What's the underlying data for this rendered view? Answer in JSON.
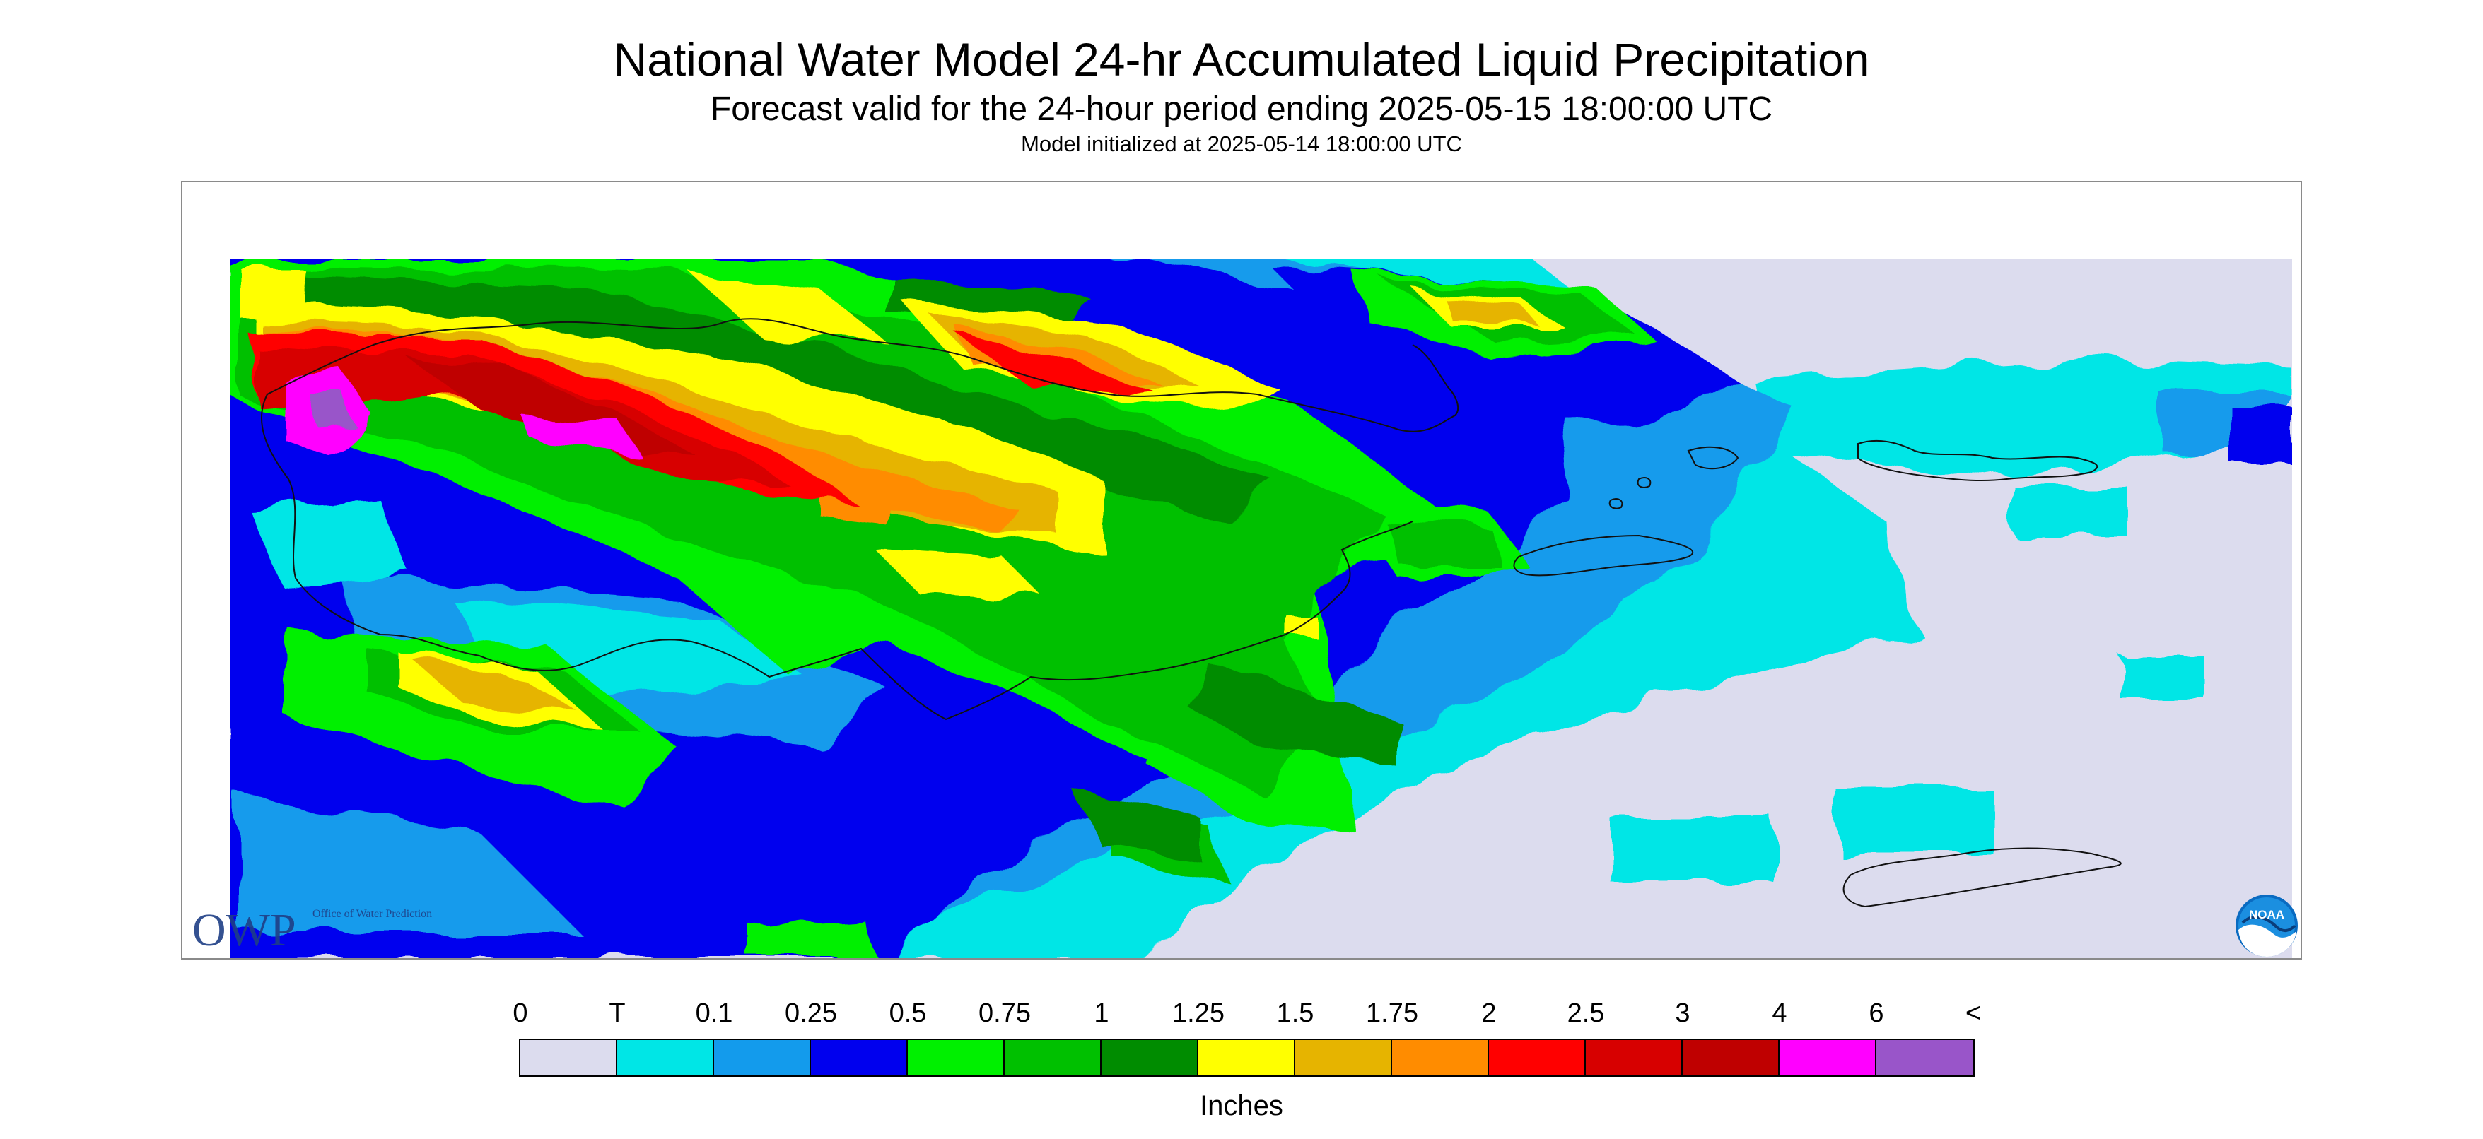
{
  "title": "National Water Model 24-hr Accumulated Liquid Precipitation",
  "subtitle": "Forecast valid for the 24-hour period ending 2025-05-15 18:00:00 UTC",
  "init": "Model initialized at 2025-05-14 18:00:00 UTC",
  "legend": {
    "labels": [
      "0",
      "T",
      "0.1",
      "0.25",
      "0.5",
      "0.75",
      "1",
      "1.25",
      "1.5",
      "1.75",
      "2",
      "2.5",
      "3",
      "4",
      "6",
      "<"
    ],
    "colors": [
      "#dcdcee",
      "#00e6e6",
      "#139bec",
      "#0000ee",
      "#00f000",
      "#00c000",
      "#008c00",
      "#ffff00",
      "#e6b400",
      "#ff8c00",
      "#ff0000",
      "#d70000",
      "#bf0000",
      "#ff00ff",
      "#9955c9"
    ],
    "units": "Inches"
  },
  "logos": {
    "owp_letters": "OWP",
    "owp_caption": "Office of Water Prediction",
    "noaa": "NOAA"
  }
}
